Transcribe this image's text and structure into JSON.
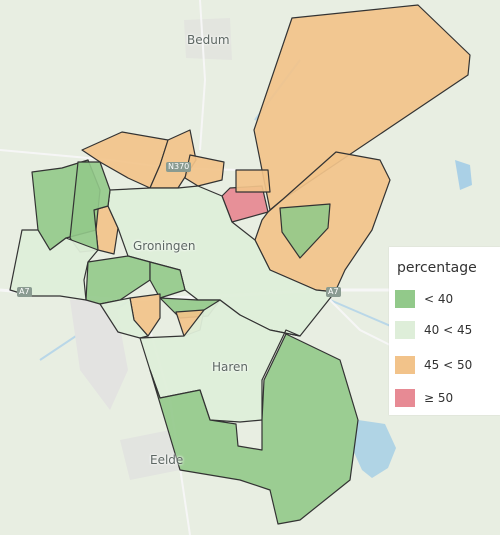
{
  "places": [
    {
      "name": "Bedum"
    },
    {
      "name": "Groningen"
    },
    {
      "name": "Haren"
    },
    {
      "name": "Eelde"
    }
  ],
  "roads": [
    {
      "label": "N370"
    },
    {
      "label": "A7"
    },
    {
      "label": "A7"
    }
  ],
  "legend": {
    "title": "percentage",
    "items": [
      {
        "label": "< 40",
        "color": "#92c98a"
      },
      {
        "label": "40 < 45",
        "color": "#deeed9"
      },
      {
        "label": "45 < 50",
        "color": "#f2c38a"
      },
      {
        "label": "≥ 50",
        "color": "#e78a94"
      }
    ]
  },
  "colors": {
    "background": "#e9eee3",
    "water": "#a9d1e8",
    "border": "#333333"
  }
}
